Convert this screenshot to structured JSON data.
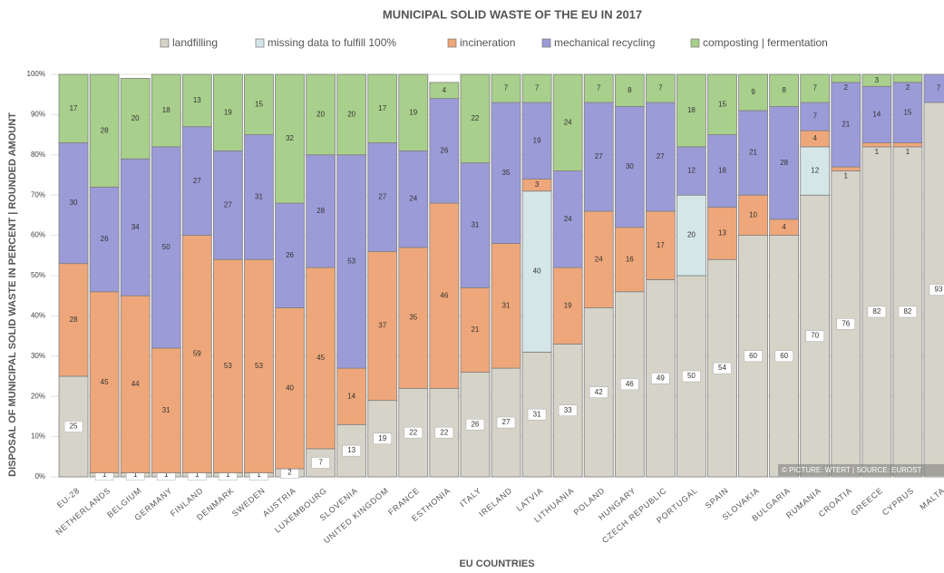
{
  "chart_data": {
    "type": "stacked_bar",
    "title": "MUNICIPAL SOLID WASTE OF THE EU IN 2017",
    "y_label": "DISPOSAL OF MUNICIPAL SOLID WASTE  IN PERCENT | ROUNDED AMOUNT",
    "x_label": "EU COUNTRIES",
    "annotation": "© PICTURE: WTERT | SOURCE: EUROST",
    "categories": [
      "EU-28",
      "NETHERLANDS",
      "BELGIUM",
      "GERMANY",
      "FINLAND",
      "DENMARK",
      "SWEDEN",
      "AUSTRIA",
      "LUXEMBOURG",
      "SLOVENIA",
      "UNITED KINGDOM",
      "FRANCE",
      "ESTHONIA",
      "ITALY",
      "IRELAND",
      "LATVIA",
      "LITHUANIA",
      "POLAND",
      "HUNGARY",
      "CZECH REPUBLIC",
      "PORTUGAL",
      "SPAIN",
      "SLOVAKIA",
      "BULGARIA",
      "RUMANIA",
      "CROATIA",
      "GREECE",
      "CYPRUS",
      "MALTA"
    ],
    "series": [
      {
        "name": "landfilling",
        "color": "#d6d3c8",
        "values": [
          25,
          1,
          1,
          1,
          1,
          1,
          1,
          2,
          7,
          13,
          19,
          22,
          22,
          26,
          27,
          31,
          33,
          42,
          46,
          49,
          50,
          54,
          60,
          60,
          70,
          76,
          82,
          82,
          93
        ]
      },
      {
        "name": "missing data to fulfill 100%",
        "color": "#d5e6e8",
        "values": [
          null,
          null,
          null,
          null,
          null,
          null,
          null,
          null,
          null,
          null,
          null,
          null,
          null,
          null,
          null,
          40,
          null,
          null,
          null,
          null,
          20,
          null,
          null,
          null,
          12,
          null,
          null,
          null,
          null
        ]
      },
      {
        "name": "incineration",
        "color": "#eea77a",
        "values": [
          28,
          45,
          44,
          31,
          59,
          53,
          53,
          40,
          45,
          14,
          37,
          35,
          46,
          21,
          31,
          3,
          19,
          24,
          16,
          17,
          null,
          13,
          10,
          4,
          4,
          1,
          1,
          1,
          null
        ]
      },
      {
        "name": "mechanical recycling",
        "color": "#9b9bd8",
        "values": [
          30,
          26,
          34,
          50,
          27,
          27,
          31,
          26,
          28,
          53,
          27,
          24,
          26,
          31,
          35,
          19,
          24,
          27,
          30,
          27,
          12,
          18,
          21,
          28,
          7,
          21,
          14,
          15,
          7
        ]
      },
      {
        "name": "composting | fermentation",
        "color": "#a8cf8c",
        "values": [
          17,
          28,
          20,
          18,
          13,
          19,
          15,
          32,
          20,
          20,
          17,
          19,
          4,
          22,
          7,
          7,
          24,
          7,
          8,
          7,
          18,
          15,
          9,
          8,
          7,
          2,
          3,
          2,
          null
        ]
      }
    ],
    "ylim": [
      0,
      100
    ],
    "yticks": [
      {
        "value": 0,
        "label": "0%"
      },
      {
        "value": 10,
        "label": "10%"
      },
      {
        "value": 20,
        "label": "20%"
      },
      {
        "value": 30,
        "label": "30%"
      },
      {
        "value": 40,
        "label": "40%"
      },
      {
        "value": 50,
        "label": "50%"
      },
      {
        "value": 60,
        "label": "60%"
      },
      {
        "value": 70,
        "label": "70%"
      },
      {
        "value": 80,
        "label": "80%"
      },
      {
        "value": 90,
        "label": "90%"
      },
      {
        "value": 100,
        "label": "100%"
      }
    ],
    "grid": true
  }
}
